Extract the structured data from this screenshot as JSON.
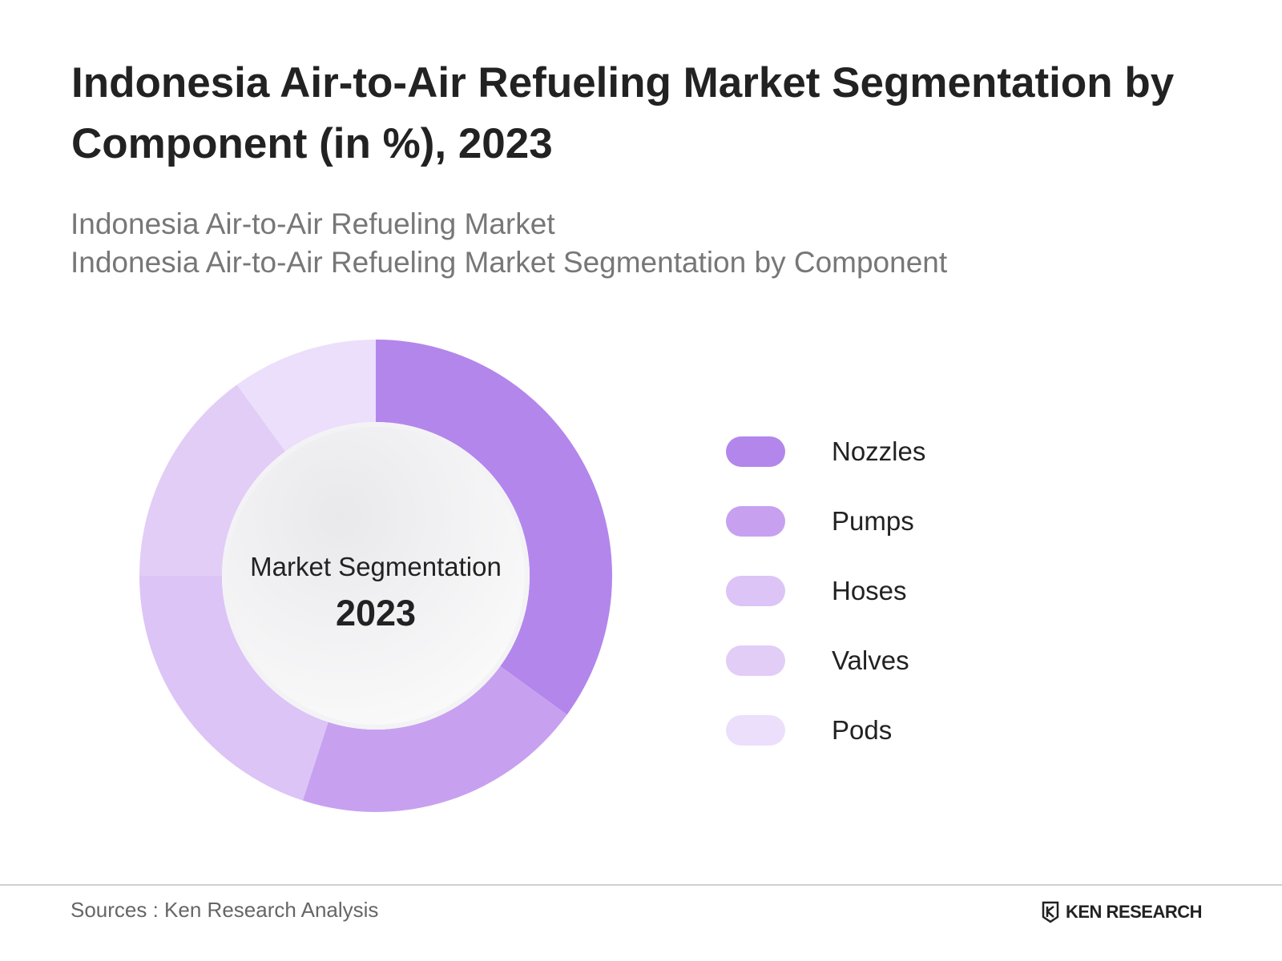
{
  "header": {
    "title": "Indonesia Air-to-Air Refueling Market Segmentation by Component (in %), 2023",
    "subtitle_line1": "Indonesia Air-to-Air Refueling Market",
    "subtitle_line2": "Indonesia Air-to-Air Refueling Market Segmentation by Component"
  },
  "chart_data": {
    "type": "pie",
    "variant": "donut",
    "title": "Indonesia Air-to-Air Refueling Market Segmentation by Component (in %), 2023",
    "center_label": "Market Segmentation",
    "center_year": "2023",
    "categories": [
      "Nozzles",
      "Pumps",
      "Hoses",
      "Valves",
      "Pods"
    ],
    "values": [
      35,
      20,
      20,
      15,
      10
    ],
    "unit": "%",
    "colors": [
      "#b386ec",
      "#c7a1f0",
      "#dcc4f6",
      "#e2cdf7",
      "#ecdffb"
    ],
    "legend_placement": "right"
  },
  "footer": {
    "source": "Sources : Ken Research Analysis",
    "brand": "KEN RESEARCH",
    "brand_icon": "ken-research-logo-icon"
  }
}
